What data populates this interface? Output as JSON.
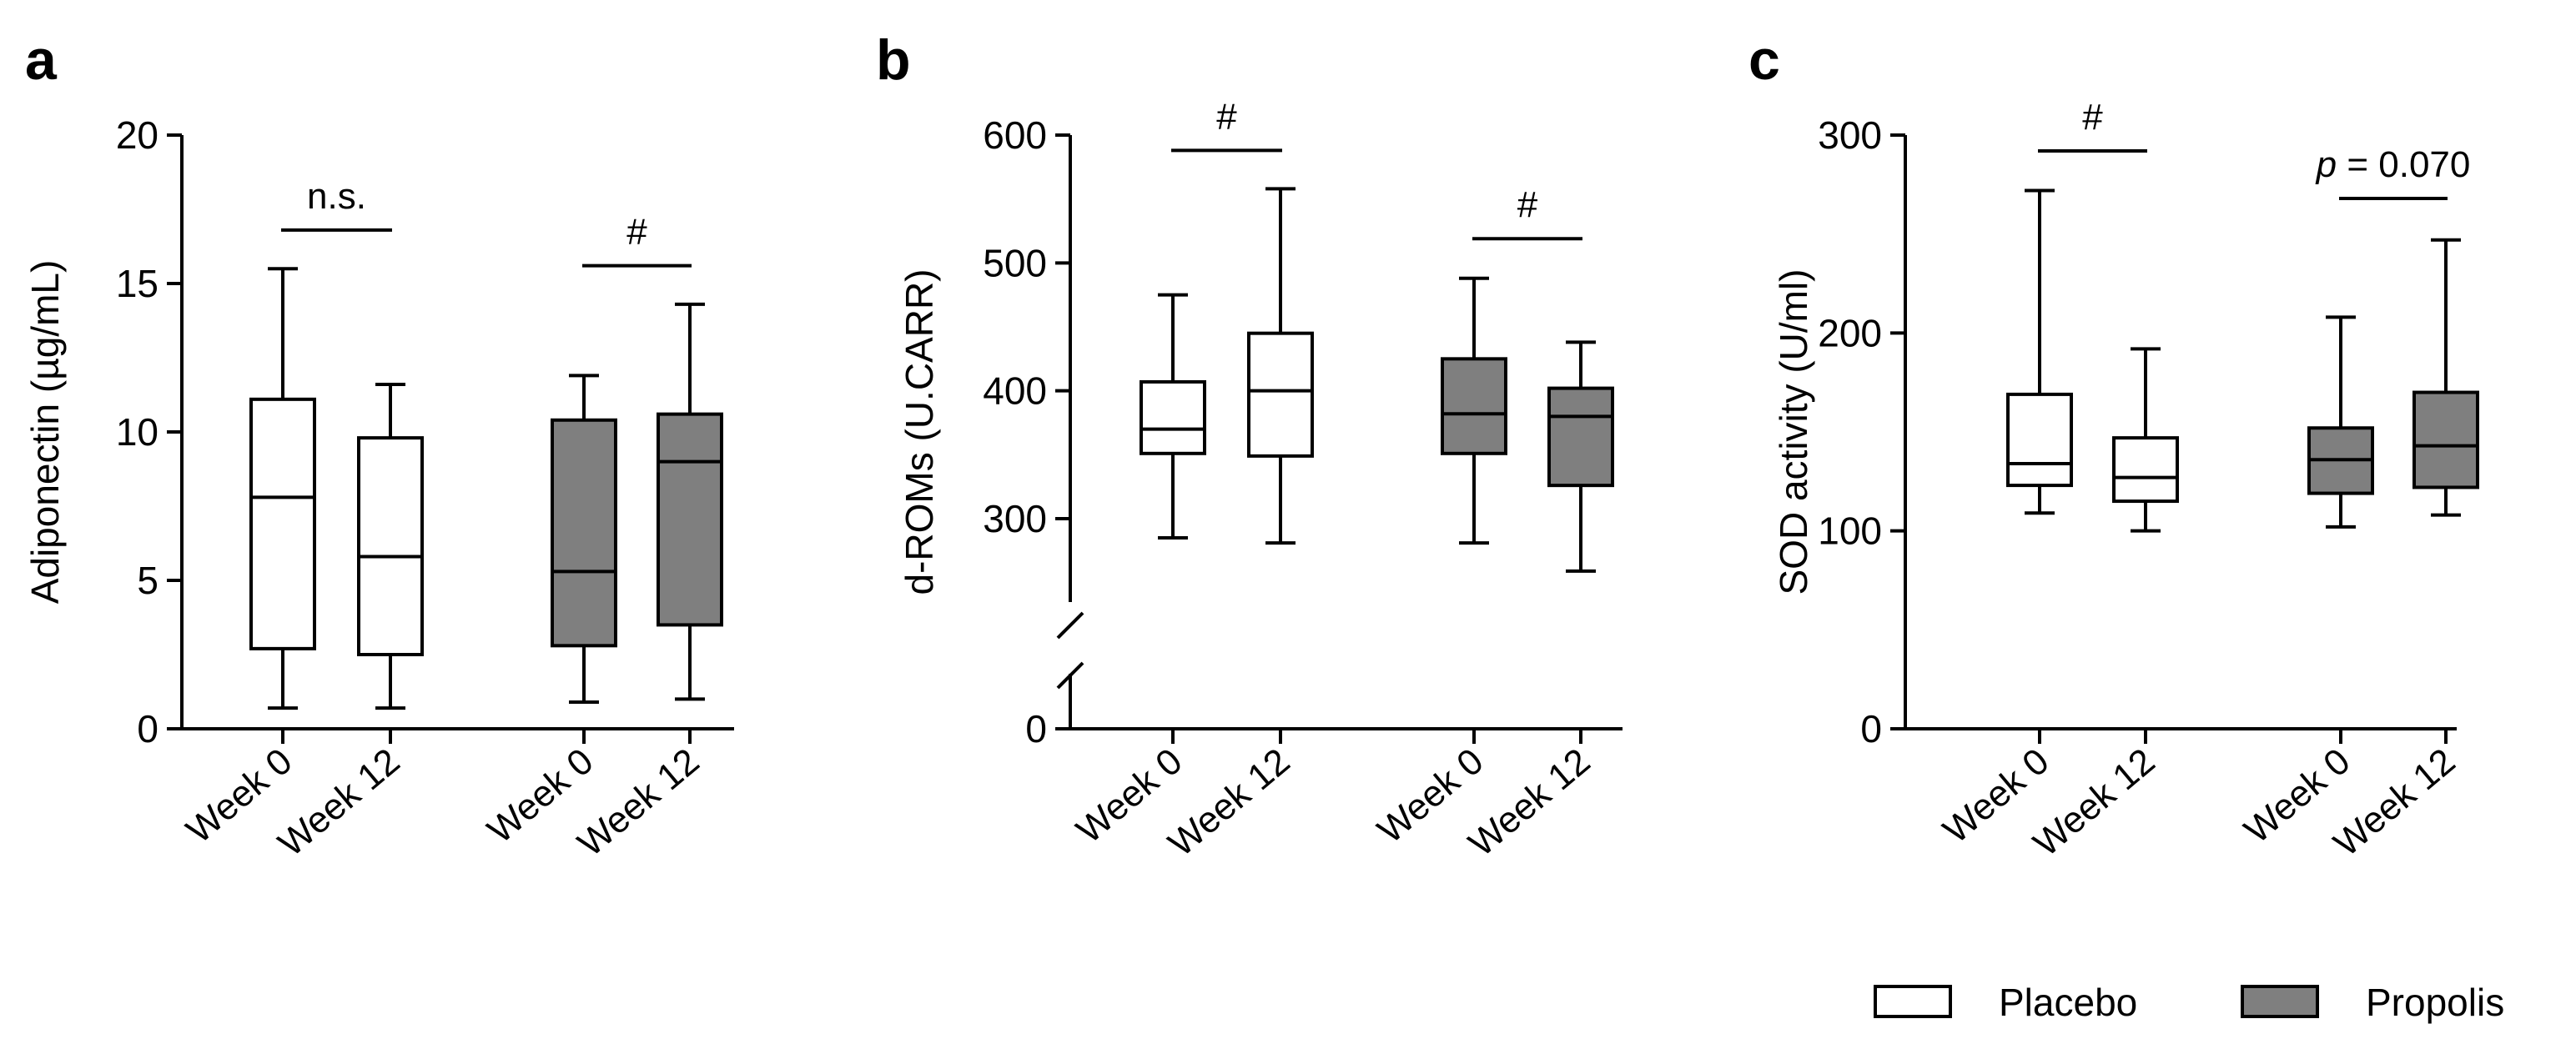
{
  "legend": {
    "entries": [
      {
        "label": "Placebo",
        "color": "#ffffff"
      },
      {
        "label": "Propolis",
        "color": "#7f7f7f"
      }
    ]
  },
  "chart_data": [
    {
      "panel": "a",
      "type": "box",
      "ylabel": "Adiponectin (µg/mL)",
      "ylim": [
        0,
        20
      ],
      "yticks": [
        0,
        5,
        10,
        15,
        20
      ],
      "categories": [
        "Week 0",
        "Week 12",
        "Week 0",
        "Week 12"
      ],
      "series": [
        {
          "name": "Placebo",
          "color": "#ffffff",
          "boxes": [
            {
              "category": "Week 0",
              "min": 0.7,
              "q1": 2.7,
              "median": 7.8,
              "q3": 11.1,
              "max": 15.5
            },
            {
              "category": "Week 12",
              "min": 0.7,
              "q1": 2.5,
              "median": 5.8,
              "q3": 9.8,
              "max": 11.6
            }
          ]
        },
        {
          "name": "Propolis",
          "color": "#7f7f7f",
          "boxes": [
            {
              "category": "Week 0",
              "min": 0.9,
              "q1": 2.8,
              "median": 5.3,
              "q3": 10.4,
              "max": 11.9
            },
            {
              "category": "Week 12",
              "min": 1.0,
              "q1": 3.5,
              "median": 9.0,
              "q3": 10.6,
              "max": 14.3
            }
          ]
        }
      ],
      "annotations": [
        {
          "group": "Placebo",
          "text": "n.s.",
          "y": 16.8,
          "italic_p": false
        },
        {
          "group": "Propolis",
          "text": "#",
          "y": 15.6,
          "italic_p": false
        }
      ]
    },
    {
      "panel": "b",
      "type": "box",
      "ylabel": "d-ROMs (U.CARR)",
      "ylim": [
        0,
        600
      ],
      "yticks": [
        0,
        300,
        400,
        500,
        600
      ],
      "axis_break": {
        "from": 0,
        "to": 250
      },
      "categories": [
        "Week 0",
        "Week 12",
        "Week 0",
        "Week 12"
      ],
      "series": [
        {
          "name": "Placebo",
          "color": "#ffffff",
          "boxes": [
            {
              "category": "Week 0",
              "min": 285,
              "q1": 351,
              "median": 370,
              "q3": 407,
              "max": 475
            },
            {
              "category": "Week 12",
              "min": 281,
              "q1": 349,
              "median": 400,
              "q3": 445,
              "max": 558
            }
          ]
        },
        {
          "name": "Propolis",
          "color": "#7f7f7f",
          "boxes": [
            {
              "category": "Week 0",
              "min": 281,
              "q1": 351,
              "median": 382,
              "q3": 425,
              "max": 488
            },
            {
              "category": "Week 12",
              "min": 259,
              "q1": 326,
              "median": 380,
              "q3": 402,
              "max": 438
            }
          ]
        }
      ],
      "annotations": [
        {
          "group": "Placebo",
          "text": "#",
          "y": 588,
          "italic_p": false
        },
        {
          "group": "Propolis",
          "text": "#",
          "y": 519,
          "italic_p": false
        }
      ]
    },
    {
      "panel": "c",
      "type": "box",
      "ylabel": "SOD activity (U/ml)",
      "ylim": [
        0,
        300
      ],
      "yticks": [
        0,
        100,
        200,
        300
      ],
      "categories": [
        "Week 0",
        "Week 12",
        "Week 0",
        "Week 12"
      ],
      "series": [
        {
          "name": "Placebo",
          "color": "#ffffff",
          "boxes": [
            {
              "category": "Week 0",
              "min": 109,
              "q1": 123,
              "median": 134,
              "q3": 169,
              "max": 272
            },
            {
              "category": "Week 12",
              "min": 100,
              "q1": 115,
              "median": 127,
              "q3": 147,
              "max": 192
            }
          ]
        },
        {
          "name": "Propolis",
          "color": "#7f7f7f",
          "boxes": [
            {
              "category": "Week 0",
              "min": 102,
              "q1": 119,
              "median": 136,
              "q3": 152,
              "max": 208
            },
            {
              "category": "Week 12",
              "min": 108,
              "q1": 122,
              "median": 143,
              "q3": 170,
              "max": 247
            }
          ]
        }
      ],
      "annotations": [
        {
          "group": "Placebo",
          "text": "#",
          "y": 292,
          "italic_p": false
        },
        {
          "group": "Propolis",
          "text": "p = 0.070",
          "y": 268,
          "italic_p": true
        }
      ]
    }
  ]
}
